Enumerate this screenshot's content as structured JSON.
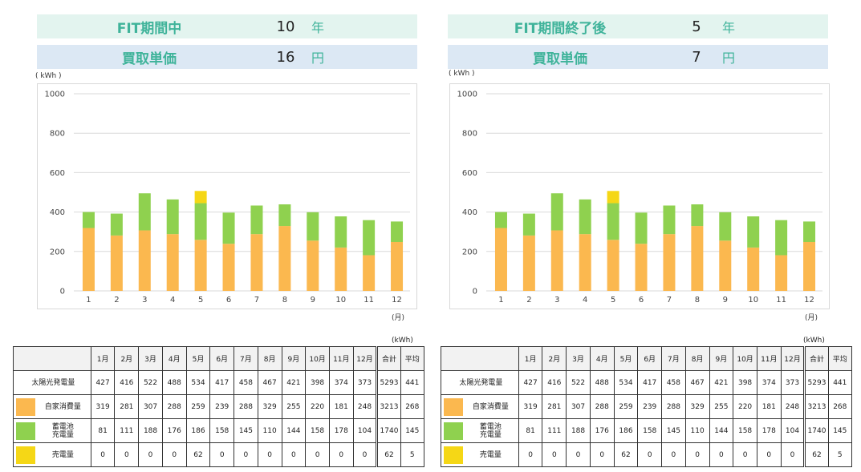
{
  "panels": [
    {
      "id": "left",
      "banner_fit": {
        "label": "FIT期間中",
        "value": "10",
        "unit": "年"
      },
      "banner_price": {
        "label": "買取単価",
        "value": "16",
        "unit": "円"
      },
      "yunit": "( kWh )",
      "xunit": "(月)",
      "table_unit": "(kWh)"
    },
    {
      "id": "right",
      "banner_fit": {
        "label": "FIT期間終了後",
        "value": "5",
        "unit": "年"
      },
      "banner_price": {
        "label": "買取単価",
        "value": "7",
        "unit": "円"
      },
      "yunit": "( kWh )",
      "xunit": "(月)",
      "table_unit": "(kWh)"
    }
  ],
  "colors": {
    "self": "#fbb84f",
    "battery": "#8fd14f",
    "sell": "#f5d716",
    "grid": "#d9d9d9"
  },
  "chart_data": [
    {
      "type": "bar",
      "stacked": true,
      "categories": [
        "1",
        "2",
        "3",
        "4",
        "5",
        "6",
        "7",
        "8",
        "9",
        "10",
        "11",
        "12"
      ],
      "series": [
        {
          "values": [
            319,
            281,
            307,
            288,
            259,
            239,
            288,
            329,
            255,
            220,
            181,
            248
          ]
        },
        {
          "values": [
            81,
            111,
            188,
            176,
            186,
            158,
            145,
            110,
            144,
            158,
            178,
            104
          ]
        },
        {
          "values": [
            0,
            0,
            0,
            0,
            62,
            0,
            0,
            0,
            0,
            0,
            0,
            0
          ]
        }
      ],
      "yticks": [
        0,
        200,
        400,
        600,
        800,
        1000
      ],
      "ylim": [
        0,
        1000
      ],
      "grid": true
    },
    {
      "type": "bar",
      "stacked": true,
      "categories": [
        "1",
        "2",
        "3",
        "4",
        "5",
        "6",
        "7",
        "8",
        "9",
        "10",
        "11",
        "12"
      ],
      "series": [
        {
          "values": [
            319,
            281,
            307,
            288,
            259,
            239,
            288,
            329,
            255,
            220,
            181,
            248
          ]
        },
        {
          "values": [
            81,
            111,
            188,
            176,
            186,
            158,
            145,
            110,
            144,
            158,
            178,
            104
          ]
        },
        {
          "values": [
            0,
            0,
            0,
            0,
            62,
            0,
            0,
            0,
            0,
            0,
            0,
            0
          ]
        }
      ],
      "yticks": [
        0,
        200,
        400,
        600,
        800,
        1000
      ],
      "ylim": [
        0,
        1000
      ],
      "grid": true
    }
  ],
  "table": {
    "headers": [
      "1月",
      "2月",
      "3月",
      "4月",
      "5月",
      "6月",
      "7月",
      "8月",
      "9月",
      "10月",
      "11月",
      "12月",
      "合計",
      "平均"
    ],
    "rows": [
      {
        "label": "太陽光発電量",
        "swatch": "",
        "values": [
          "427",
          "416",
          "522",
          "488",
          "534",
          "417",
          "458",
          "467",
          "421",
          "398",
          "374",
          "373",
          "5293",
          "441"
        ]
      },
      {
        "label": "自家消費量",
        "swatch": "self",
        "values": [
          "319",
          "281",
          "307",
          "288",
          "259",
          "239",
          "288",
          "329",
          "255",
          "220",
          "181",
          "248",
          "3213",
          "268"
        ]
      },
      {
        "label": "蓄電池\n充電量",
        "swatch": "battery",
        "values": [
          "81",
          "111",
          "188",
          "176",
          "186",
          "158",
          "145",
          "110",
          "144",
          "158",
          "178",
          "104",
          "1740",
          "145"
        ]
      },
      {
        "label": "売電量",
        "swatch": "sell",
        "values": [
          "0",
          "0",
          "0",
          "0",
          "62",
          "0",
          "0",
          "0",
          "0",
          "0",
          "0",
          "0",
          "62",
          "5"
        ]
      }
    ]
  }
}
